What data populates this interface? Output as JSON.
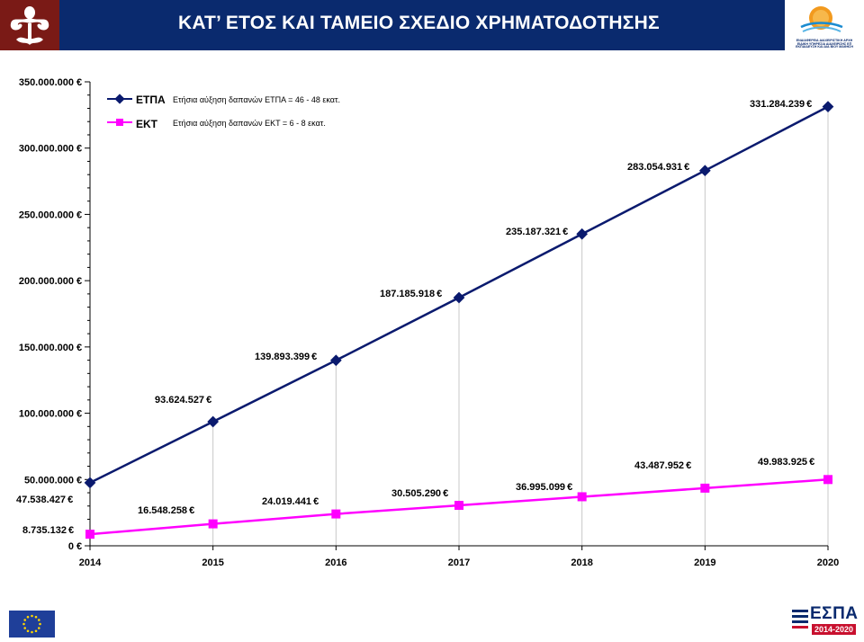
{
  "title": "ΚΑΤ’ ΕΤΟΣ ΚΑΙ ΤΑΜΕΙΟ ΣΧΕΔΙΟ ΧΡΗΜΑΤΟΔΟΤΗΣΗΣ",
  "logos": {
    "left": "crest-ornament-icon",
    "right_caption": "ΕΙΔΙΚΗ ΥΠΗΡΕΣΙΑ ΔΙΑΧΕΙΡΙΣΗΣ ΕΠ ΕΚΠΑΙΔΕΥΣΗ ΚΑΙ ΔΙΑ ΒΙΟΥ ΜΑΘΗΣΗ",
    "right_caption_title": "ΕΝΔΙΑΦΕΡΕΙΑ ΔΙΑΧΕΙΡΙΣΤΙΚΗ ΑΡΧΗ",
    "footer_left": "eu-flag-icon",
    "footer_right_text": "ΕΣΠΑ",
    "footer_right_years": "2014-2020"
  },
  "colors": {
    "header_bg": "#0a2a6e",
    "espa_series": "#0a1a6e",
    "ekt_series": "#ff00ff"
  },
  "legend": [
    {
      "name": "ΕΤΠΑ",
      "desc": "Ετήσια αύξηση δαπανών ΕΤΠΑ = 46 - 48 εκατ."
    },
    {
      "name": "ΕΚΤ",
      "desc": "Ετήσια αύξηση δαπανών ΕΚΤ = 6 - 8 εκατ. "
    }
  ],
  "chart_data": {
    "type": "line",
    "x": [
      "2014",
      "2015",
      "2016",
      "2017",
      "2018",
      "2019",
      "2020"
    ],
    "series": [
      {
        "name": "ΕΤΠΑ",
        "values": [
          47538427,
          93624527,
          139893399,
          187185918,
          235187321,
          283054931,
          331284239
        ],
        "labels": [
          "47.538.427 ",
          "93.624.527 ",
          "139.893.399 ",
          "187.185.918 ",
          "235.187.321 ",
          "283.054.931 ",
          "331.284.239 "
        ]
      },
      {
        "name": "ΕΚΤ",
        "values": [
          8735132,
          16548258,
          24019441,
          30505290,
          36995099,
          43487952,
          49983925
        ],
        "labels": [
          "8.735.132 ",
          "16.548.258 ",
          "24.019.441 ",
          "30.505.290 ",
          "36.995.099 ",
          "43.487.952 ",
          "49.983.925 "
        ]
      }
    ],
    "y_ticks": [
      {
        "value": 0,
        "label": "0 "
      },
      {
        "value": 50000000,
        "label": "50.000.000 "
      },
      {
        "value": 100000000,
        "label": "100.000.000 "
      },
      {
        "value": 150000000,
        "label": "150.000.000 "
      },
      {
        "value": 200000000,
        "label": "200.000.000 "
      },
      {
        "value": 250000000,
        "label": "250.000.000 "
      },
      {
        "value": 300000000,
        "label": "300.000.000 "
      },
      {
        "value": 350000000,
        "label": "350.000.000 "
      }
    ],
    "ylim": [
      0,
      350000000
    ],
    "grid": "vertical drop lines",
    "legend_position": "top-left"
  }
}
